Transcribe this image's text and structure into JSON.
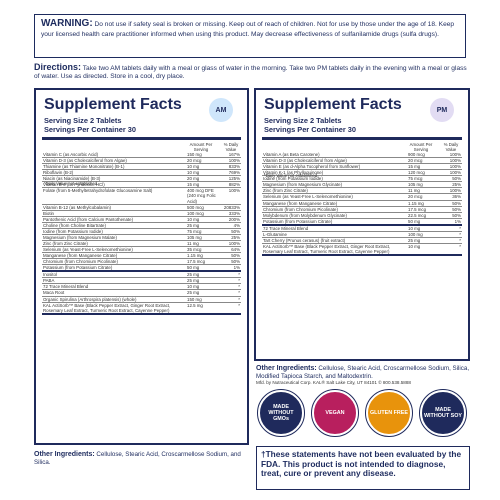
{
  "warning": {
    "label": "WARNING:",
    "text": "Do not use if safety seal is broken or missing. Keep out of reach of children. Not for use by those under the age of 18. Keep your licensed health care practitioner informed when using this product. May decrease effectiveness of sulfanilamide drugs (sulfa drugs)."
  },
  "directions": {
    "label": "Directions:",
    "text": "Take two AM tablets daily with a meal or glass of water in the morning. Take two PM tablets daily in the evening with a meal or glass of water. Use as directed. Store in a cool, dry place."
  },
  "am": {
    "title": "Supplement Facts",
    "badge": "AM",
    "serving_size": "Serving Size 2 Tablets",
    "servings": "Servings Per Container 30",
    "col_amount": "Amount Per Serving",
    "col_dv": "% Daily Value",
    "rows": [
      {
        "n": "Vitamin C (as Ascorbic Acid)",
        "a": "150 mg",
        "d": "167%"
      },
      {
        "n": "Vitamin D-3 (as Cholecalciferol from Algae)",
        "a": "20 mcg",
        "d": "100%"
      },
      {
        "n": "Thiamine (as Thiamine Mononitrate) (B-1)",
        "a": "10 mg",
        "d": "833%"
      },
      {
        "n": "Riboflavin (B-2)",
        "a": "10 mg",
        "d": "769%"
      },
      {
        "n": "Niacin (as Niacinamide) (B-3)",
        "a": "20 mg",
        "d": "125%"
      },
      {
        "n": "Vitamin B-6 (as Pyridoxine HCl)",
        "a": "15 mg",
        "d": "882%"
      },
      {
        "n": "Folate (from 5-Methyltetrahydrofolate Glucosamine Salt)",
        "a": "400 mcg DFE (240 mcg Folic Acid)",
        "d": "100%"
      },
      {
        "n": "Vitamin B-12 (as Methylcobalamin)",
        "a": "500 mcg",
        "d": "20833%"
      },
      {
        "n": "Biotin",
        "a": "100 mcg",
        "d": "333%"
      },
      {
        "n": "Pantothenic Acid (from Calcium Pantothenate)",
        "a": "10 mg",
        "d": "200%"
      },
      {
        "n": "Choline (from Choline Bitartrate)",
        "a": "25 mg",
        "d": "4%"
      },
      {
        "n": "Iodine (from Potassium Iodide)",
        "a": "75 mcg",
        "d": "50%"
      },
      {
        "n": "Magnesium (from Magnesium Malate)",
        "a": "105 mg",
        "d": "25%"
      },
      {
        "n": "Zinc (from Zinc Citrate)",
        "a": "11 mg",
        "d": "100%"
      },
      {
        "n": "Selenium (as Yeast-Free L-Selenomethionine)",
        "a": "35 mcg",
        "d": "64%"
      },
      {
        "n": "Manganese (from Manganese Citrate)",
        "a": "1.15 mg",
        "d": "50%"
      },
      {
        "n": "Chromium (from Chromium Picolinate)",
        "a": "17.5 mcg",
        "d": "50%"
      },
      {
        "n": "Potassium (from Potassium Citrate)",
        "a": "50 mg",
        "d": "1%"
      }
    ],
    "extra_rows": [
      {
        "n": "Inositol",
        "a": "25 mg",
        "d": "*"
      },
      {
        "n": "PABA",
        "a": "25 mg",
        "d": "*"
      },
      {
        "n": "72 Trace Mineral Blend",
        "a": "10 mg",
        "d": "*"
      },
      {
        "n": "Maca Root",
        "a": "25 mg",
        "d": "*"
      },
      {
        "n": "Organic Spirulina (Arthrospira platensis) (whole)",
        "a": "150 mg",
        "d": "*"
      },
      {
        "n": "KAL ActiSorb™ Base (Black Pepper Extract, Ginger Root Extract, Rosemary Leaf Extract, Turmeric Root Extract, Cayenne Pepper)",
        "a": "12.5 mg",
        "d": "*"
      }
    ],
    "note": "*Daily Value not established."
  },
  "pm": {
    "title": "Supplement Facts",
    "badge": "PM",
    "serving_size": "Serving Size 2 Tablets",
    "servings": "Servings Per Container 30",
    "col_amount": "Amount Per Serving",
    "col_dv": "% Daily Value",
    "rows": [
      {
        "n": "Vitamin A (as Beta Carotene)",
        "a": "900 mcg",
        "d": "100%"
      },
      {
        "n": "Vitamin D-3 (as Cholecalciferol from Algae)",
        "a": "20 mcg",
        "d": "100%"
      },
      {
        "n": "Vitamin E (as d-Alpha Tocopherol from Sunflower)",
        "a": "15 mg",
        "d": "100%"
      },
      {
        "n": "Vitamin K-1 (as Phylloquinone)",
        "a": "120 mcg",
        "d": "100%"
      },
      {
        "n": "Iodine (from Potassium Iodide)",
        "a": "75 mcg",
        "d": "50%"
      },
      {
        "n": "Magnesium (from Magnesium Glycinate)",
        "a": "105 mg",
        "d": "25%"
      },
      {
        "n": "Zinc (from Zinc Citrate)",
        "a": "11 mg",
        "d": "100%"
      },
      {
        "n": "Selenium (as Yeast-Free L-Selenomethionine)",
        "a": "20 mcg",
        "d": "36%"
      },
      {
        "n": "Manganese (from Manganese Citrate)",
        "a": "1.15 mg",
        "d": "50%"
      },
      {
        "n": "Chromium (from Chromium Picolinate)",
        "a": "17.5 mcg",
        "d": "50%"
      },
      {
        "n": "Molybdenum (from Molybdenum Glycinate)",
        "a": "22.5 mcg",
        "d": "50%"
      },
      {
        "n": "Potassium (from Potassium Citrate)",
        "a": "50 mg",
        "d": "1%"
      }
    ],
    "extra_rows": [
      {
        "n": "72 Trace Mineral Blend",
        "a": "10 mg",
        "d": "*"
      },
      {
        "n": "L-Glutamine",
        "a": "100 mg",
        "d": "*"
      },
      {
        "n": "Tart Cherry (Prunus cerasus) (fruit extract)",
        "a": "25 mg",
        "d": "*"
      },
      {
        "n": "KAL ActiSorb™ Base (Black Pepper Extract, Ginger Root Extract, Rosemary Leaf Extract, Turmeric Root Extract, Cayenne Pepper)",
        "a": "10 mg",
        "d": "*"
      }
    ],
    "note": "*Daily Value not established."
  },
  "other_ingredients_pm": {
    "label": "Other Ingredients:",
    "text": "Cellulose, Stearic Acid, Croscarmellose Sodium, Silica, Modified Tapioca Starch, and Maltodextrin."
  },
  "mfd": "Mfd. by Nutraceutical Corp. KAL® Salt Lake City, UT 84101 © 800.538.5888",
  "seals": [
    {
      "label": "MADE WITHOUT GMOs",
      "color": "#1f2a5c"
    },
    {
      "label": "VEGAN",
      "color": "#b81f5e"
    },
    {
      "label": "GLUTEN FREE",
      "color": "#e8930c"
    },
    {
      "label": "MADE WITHOUT SOY",
      "color": "#1f2a5c"
    }
  ],
  "fda": "†These statements have not been evaluated by the FDA. This product is not intended to diagnose, treat, cure or prevent any disease.",
  "other_ingredients_am": {
    "label": "Other Ingredients:",
    "text": "Cellulose, Stearic Acid, Croscarmellose Sodium, and Silica."
  }
}
